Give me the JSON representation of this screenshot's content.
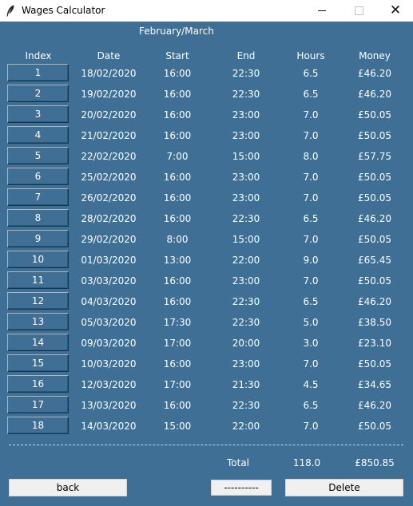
{
  "window": {
    "title": "Wages Calculator"
  },
  "month_label": "February/March",
  "headers": {
    "index": "Index",
    "date": "Date",
    "start": "Start",
    "end": "End",
    "hours": "Hours",
    "money": "Money"
  },
  "rows": [
    {
      "index": "1",
      "date": "18/02/2020",
      "start": "16:00",
      "end": "22:30",
      "hours": "6.5",
      "money": "£46.20"
    },
    {
      "index": "2",
      "date": "19/02/2020",
      "start": "16:00",
      "end": "22:30",
      "hours": "6.5",
      "money": "£46.20"
    },
    {
      "index": "3",
      "date": "20/02/2020",
      "start": "16:00",
      "end": "23:00",
      "hours": "7.0",
      "money": "£50.05"
    },
    {
      "index": "4",
      "date": "21/02/2020",
      "start": "16:00",
      "end": "23:00",
      "hours": "7.0",
      "money": "£50.05"
    },
    {
      "index": "5",
      "date": "22/02/2020",
      "start": "7:00",
      "end": "15:00",
      "hours": "8.0",
      "money": "£57.75"
    },
    {
      "index": "6",
      "date": "25/02/2020",
      "start": "16:00",
      "end": "23:00",
      "hours": "7.0",
      "money": "£50.05"
    },
    {
      "index": "7",
      "date": "26/02/2020",
      "start": "16:00",
      "end": "23:00",
      "hours": "7.0",
      "money": "£50.05"
    },
    {
      "index": "8",
      "date": "28/02/2020",
      "start": "16:00",
      "end": "22:30",
      "hours": "6.5",
      "money": "£46.20"
    },
    {
      "index": "9",
      "date": "29/02/2020",
      "start": "8:00",
      "end": "15:00",
      "hours": "7.0",
      "money": "£50.05"
    },
    {
      "index": "10",
      "date": "01/03/2020",
      "start": "13:00",
      "end": "22:00",
      "hours": "9.0",
      "money": "£65.45"
    },
    {
      "index": "11",
      "date": "03/03/2020",
      "start": "16:00",
      "end": "23:00",
      "hours": "7.0",
      "money": "£50.05"
    },
    {
      "index": "12",
      "date": "04/03/2020",
      "start": "16:00",
      "end": "22:30",
      "hours": "6.5",
      "money": "£46.20"
    },
    {
      "index": "13",
      "date": "05/03/2020",
      "start": "17:30",
      "end": "22:30",
      "hours": "5.0",
      "money": "£38.50"
    },
    {
      "index": "14",
      "date": "09/03/2020",
      "start": "17:00",
      "end": "20:00",
      "hours": "3.0",
      "money": "£23.10"
    },
    {
      "index": "15",
      "date": "10/03/2020",
      "start": "16:00",
      "end": "23:00",
      "hours": "7.0",
      "money": "£50.05"
    },
    {
      "index": "16",
      "date": "12/03/2020",
      "start": "17:00",
      "end": "21:30",
      "hours": "4.5",
      "money": "£34.65"
    },
    {
      "index": "17",
      "date": "13/03/2020",
      "start": "16:00",
      "end": "22:30",
      "hours": "6.5",
      "money": "£46.20"
    },
    {
      "index": "18",
      "date": "14/03/2020",
      "start": "15:00",
      "end": "22:00",
      "hours": "7.0",
      "money": "£50.05"
    }
  ],
  "totals": {
    "label": "Total",
    "hours": "118.0",
    "money": "£850.85"
  },
  "buttons": {
    "back": "back",
    "dashes": "----------",
    "delete": "Delete"
  },
  "icons": {
    "app": "feather-icon",
    "minimize": "minimize-icon",
    "maximize": "maximize-icon",
    "close": "close-icon"
  },
  "colors": {
    "background": "#3f6f95",
    "titlebar": "#ffffff",
    "button": "#f0f0f0"
  }
}
